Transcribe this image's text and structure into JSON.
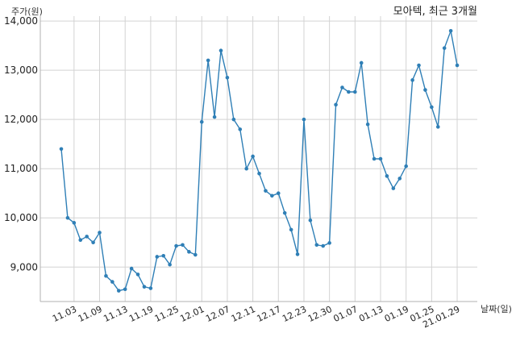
{
  "chart_data": {
    "type": "line",
    "title": "모아텍, 최근 3개월",
    "xlabel": "날짜(일)",
    "ylabel": "주가(원)",
    "color": "#2f7fb6",
    "grid": true,
    "ylim": [
      8300,
      14100
    ],
    "yticks": [
      9000,
      10000,
      11000,
      12000,
      13000,
      14000
    ],
    "ytick_labels": [
      "9,000",
      "10,000",
      "11,000",
      "12,000",
      "13,000",
      "14,000"
    ],
    "xticks": [
      {
        "index": 2,
        "label": "11.03"
      },
      {
        "index": 6,
        "label": "11.09"
      },
      {
        "index": 10,
        "label": "11.13"
      },
      {
        "index": 14,
        "label": "11.19"
      },
      {
        "index": 18,
        "label": "11.25"
      },
      {
        "index": 22,
        "label": "12.01"
      },
      {
        "index": 26,
        "label": "12.07"
      },
      {
        "index": 30,
        "label": "12.11"
      },
      {
        "index": 34,
        "label": "12.17"
      },
      {
        "index": 38,
        "label": "12.23"
      },
      {
        "index": 42,
        "label": "12.30"
      },
      {
        "index": 46,
        "label": "01.07"
      },
      {
        "index": 50,
        "label": "01.13"
      },
      {
        "index": 54,
        "label": "01.19"
      },
      {
        "index": 58,
        "label": "01.25"
      },
      {
        "index": 62,
        "label": "21.01.29"
      }
    ],
    "values": [
      11400,
      10000,
      9900,
      9550,
      9620,
      9500,
      9700,
      8820,
      8700,
      8520,
      8550,
      8970,
      8850,
      8600,
      8570,
      9210,
      9230,
      9050,
      9430,
      9450,
      9310,
      9250,
      11950,
      13200,
      12050,
      13400,
      12850,
      12000,
      11800,
      11000,
      11250,
      10900,
      10550,
      10450,
      10500,
      10100,
      9760,
      9260,
      12000,
      9950,
      9450,
      9430,
      9490,
      12300,
      12650,
      12560,
      12560,
      13150,
      11900,
      11200,
      11200,
      10850,
      10600,
      10800,
      11050,
      12800,
      13100,
      12600,
      12250,
      11850,
      13450,
      13800,
      13100
    ]
  }
}
